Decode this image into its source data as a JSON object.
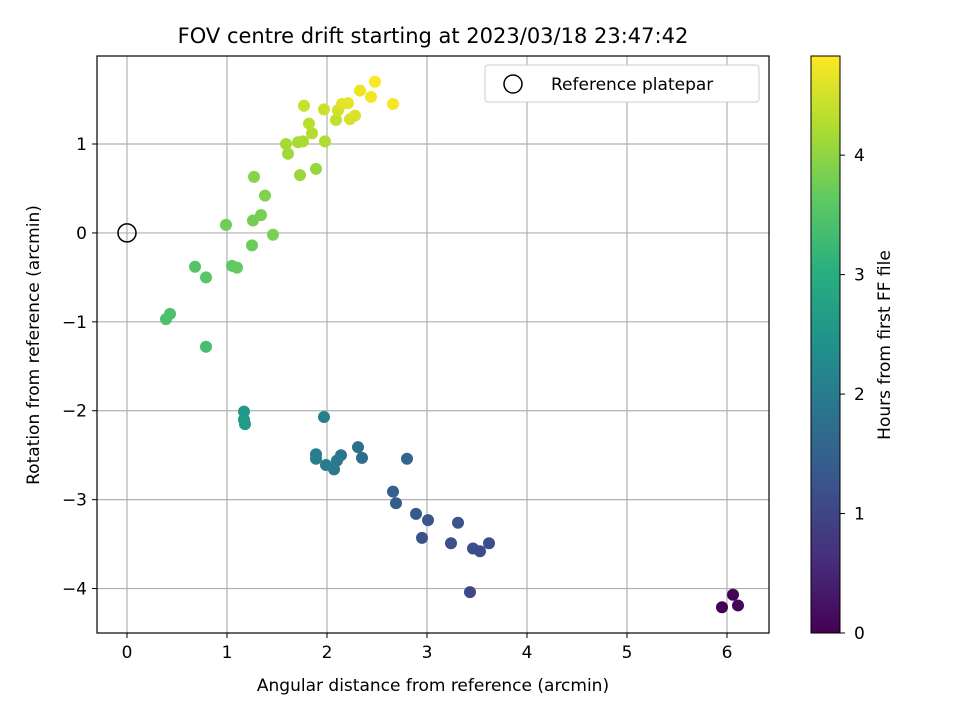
{
  "chart_data": {
    "type": "scatter",
    "title": "FOV centre drift starting at 2023/03/18 23:47:42",
    "xlabel": "Angular distance from reference (arcmin)",
    "ylabel": "Rotation from reference (arcmin)",
    "xlim": [
      -0.3,
      6.42
    ],
    "ylim": [
      -4.5,
      1.99
    ],
    "xticks": [
      0,
      1,
      2,
      3,
      4,
      5,
      6
    ],
    "yticks": [
      -4,
      -3,
      -2,
      -1,
      0,
      1
    ],
    "grid": true,
    "legend": {
      "position": "top-right",
      "entries": [
        {
          "label": "Reference platepar",
          "marker": "open-circle"
        }
      ]
    },
    "reference_point": {
      "x": 0,
      "y": 0
    },
    "colorbar": {
      "label": "Hours from first FF file",
      "colormap": "viridis",
      "range": [
        0,
        4.83
      ],
      "ticks": [
        0,
        1,
        2,
        3,
        4
      ]
    },
    "points": [
      {
        "x": 5.95,
        "y": -4.21,
        "hours": 0.0
      },
      {
        "x": 6.06,
        "y": -4.07,
        "hours": 0.05
      },
      {
        "x": 6.11,
        "y": -4.19,
        "hours": 0.1
      },
      {
        "x": 3.43,
        "y": -4.04,
        "hours": 1.05
      },
      {
        "x": 3.53,
        "y": -3.58,
        "hours": 1.1
      },
      {
        "x": 3.46,
        "y": -3.55,
        "hours": 1.12
      },
      {
        "x": 3.62,
        "y": -3.49,
        "hours": 1.15
      },
      {
        "x": 3.24,
        "y": -3.49,
        "hours": 1.18
      },
      {
        "x": 2.95,
        "y": -3.43,
        "hours": 1.22
      },
      {
        "x": 3.31,
        "y": -3.26,
        "hours": 1.26
      },
      {
        "x": 3.01,
        "y": -3.23,
        "hours": 1.3
      },
      {
        "x": 2.89,
        "y": -3.16,
        "hours": 1.34
      },
      {
        "x": 2.69,
        "y": -3.04,
        "hours": 1.4
      },
      {
        "x": 2.66,
        "y": -2.91,
        "hours": 1.45
      },
      {
        "x": 2.8,
        "y": -2.54,
        "hours": 1.58
      },
      {
        "x": 2.35,
        "y": -2.53,
        "hours": 1.72
      },
      {
        "x": 2.31,
        "y": -2.41,
        "hours": 1.78
      },
      {
        "x": 2.14,
        "y": -2.5,
        "hours": 1.85
      },
      {
        "x": 2.1,
        "y": -2.56,
        "hours": 1.9
      },
      {
        "x": 2.07,
        "y": -2.66,
        "hours": 1.94
      },
      {
        "x": 1.99,
        "y": -2.61,
        "hours": 1.98
      },
      {
        "x": 1.89,
        "y": -2.49,
        "hours": 2.02
      },
      {
        "x": 1.89,
        "y": -2.54,
        "hours": 2.05
      },
      {
        "x": 1.97,
        "y": -2.07,
        "hours": 2.1
      },
      {
        "x": 1.17,
        "y": -2.01,
        "hours": 2.55
      },
      {
        "x": 1.17,
        "y": -2.1,
        "hours": 2.58
      },
      {
        "x": 1.18,
        "y": -2.15,
        "hours": 2.62
      },
      {
        "x": 0.79,
        "y": -1.28,
        "hours": 3.35
      },
      {
        "x": 0.39,
        "y": -0.97,
        "hours": 3.42
      },
      {
        "x": 0.43,
        "y": -0.91,
        "hours": 3.45
      },
      {
        "x": 0.68,
        "y": -0.38,
        "hours": 3.52
      },
      {
        "x": 0.79,
        "y": -0.5,
        "hours": 3.55
      },
      {
        "x": 1.05,
        "y": -0.37,
        "hours": 3.62
      },
      {
        "x": 1.1,
        "y": -0.39,
        "hours": 3.65
      },
      {
        "x": 1.25,
        "y": -0.14,
        "hours": 3.72
      },
      {
        "x": 0.99,
        "y": 0.09,
        "hours": 3.75
      },
      {
        "x": 1.26,
        "y": 0.14,
        "hours": 3.78
      },
      {
        "x": 1.34,
        "y": 0.2,
        "hours": 3.8
      },
      {
        "x": 1.46,
        "y": -0.02,
        "hours": 3.84
      },
      {
        "x": 1.38,
        "y": 0.42,
        "hours": 3.88
      },
      {
        "x": 1.27,
        "y": 0.63,
        "hours": 3.94
      },
      {
        "x": 1.89,
        "y": 0.72,
        "hours": 4.05
      },
      {
        "x": 1.73,
        "y": 0.65,
        "hours": 4.08
      },
      {
        "x": 1.61,
        "y": 0.89,
        "hours": 4.12
      },
      {
        "x": 1.59,
        "y": 1.0,
        "hours": 4.15
      },
      {
        "x": 1.71,
        "y": 1.02,
        "hours": 4.18
      },
      {
        "x": 1.76,
        "y": 1.03,
        "hours": 4.2
      },
      {
        "x": 1.98,
        "y": 1.03,
        "hours": 4.24
      },
      {
        "x": 1.85,
        "y": 1.12,
        "hours": 4.28
      },
      {
        "x": 1.82,
        "y": 1.23,
        "hours": 4.32
      },
      {
        "x": 2.09,
        "y": 1.27,
        "hours": 4.38
      },
      {
        "x": 1.77,
        "y": 1.43,
        "hours": 4.42
      },
      {
        "x": 1.97,
        "y": 1.39,
        "hours": 4.46
      },
      {
        "x": 2.11,
        "y": 1.38,
        "hours": 4.5
      },
      {
        "x": 2.23,
        "y": 1.28,
        "hours": 4.55
      },
      {
        "x": 2.28,
        "y": 1.32,
        "hours": 4.58
      },
      {
        "x": 2.15,
        "y": 1.45,
        "hours": 4.62
      },
      {
        "x": 2.21,
        "y": 1.46,
        "hours": 4.65
      },
      {
        "x": 2.33,
        "y": 1.6,
        "hours": 4.7
      },
      {
        "x": 2.44,
        "y": 1.53,
        "hours": 4.74
      },
      {
        "x": 2.66,
        "y": 1.45,
        "hours": 4.78
      },
      {
        "x": 2.48,
        "y": 1.7,
        "hours": 4.83
      }
    ]
  }
}
